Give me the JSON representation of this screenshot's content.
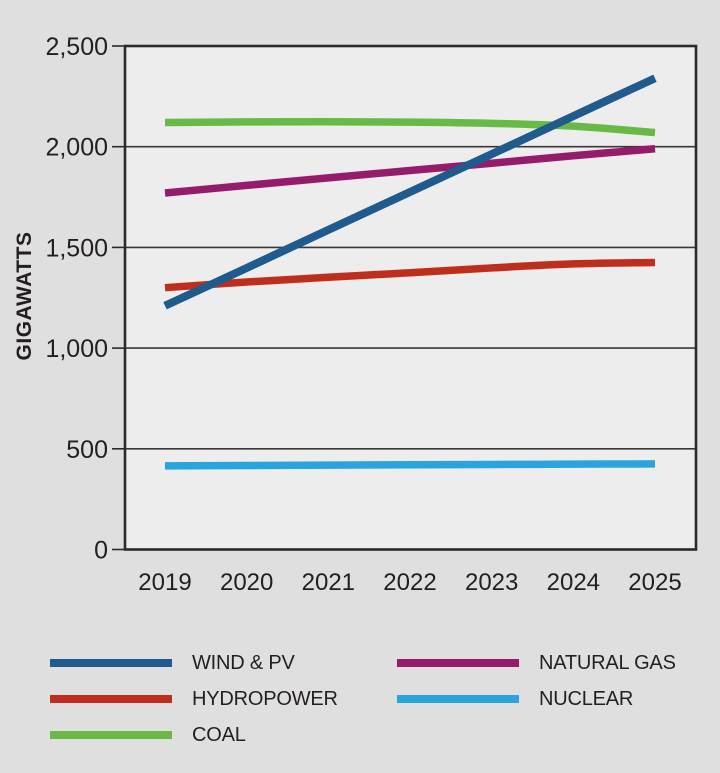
{
  "page": {
    "background": "#e0dfdf"
  },
  "chart_data": {
    "type": "line",
    "title": "",
    "xlabel": "",
    "ylabel": "GIGAWATTS",
    "categories": [
      "2019",
      "2020",
      "2021",
      "2022",
      "2023",
      "2024",
      "2025"
    ],
    "y_ticks": [
      0,
      500,
      1000,
      1500,
      2000,
      2500
    ],
    "y_tick_labels": [
      "0",
      "500",
      "1,000",
      "1,500",
      "2,000",
      "2,500"
    ],
    "ylim": [
      0,
      2500
    ],
    "grid": "horizontal",
    "legend_position": "bottom-two-columns",
    "plot_background": "#eeedee",
    "axis_color": "#2b2a29",
    "grid_color": "#3a3836",
    "text_color": "#231f20",
    "series": [
      {
        "name": "COAL",
        "color": "#69b947",
        "values": [
          2120,
          2123,
          2124,
          2122,
          2116,
          2102,
          2070
        ]
      },
      {
        "name": "NATURAL GAS",
        "color": "#951b6b",
        "values": [
          1770,
          1808,
          1845,
          1882,
          1918,
          1955,
          1990
        ]
      },
      {
        "name": "HYDROPOWER",
        "color": "#bf2e1d",
        "values": [
          1300,
          1328,
          1352,
          1374,
          1398,
          1418,
          1425
        ]
      },
      {
        "name": "NUCLEAR",
        "color": "#29a4dd",
        "values": [
          415,
          417,
          419,
          421,
          422,
          424,
          425
        ]
      },
      {
        "name": "WIND & PV",
        "color": "#1f5b8c",
        "values": [
          1210,
          1398,
          1587,
          1775,
          1963,
          2152,
          2340
        ]
      }
    ],
    "legend_order": [
      "WIND & PV",
      "NATURAL GAS",
      "HYDROPOWER",
      "NUCLEAR",
      "COAL"
    ]
  }
}
